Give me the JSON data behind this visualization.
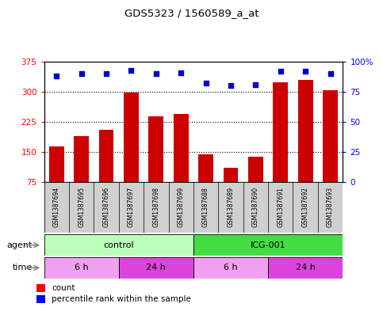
{
  "title": "GDS5323 / 1560589_a_at",
  "samples": [
    "GSM1387694",
    "GSM1387695",
    "GSM1387696",
    "GSM1387697",
    "GSM1387698",
    "GSM1387699",
    "GSM1387688",
    "GSM1387689",
    "GSM1387690",
    "GSM1387691",
    "GSM1387692",
    "GSM1387693"
  ],
  "bar_values": [
    163,
    190,
    205,
    298,
    238,
    244,
    143,
    110,
    138,
    323,
    330,
    305
  ],
  "dot_values": [
    88,
    90,
    90,
    93,
    90,
    91,
    82,
    80,
    81,
    92,
    92,
    90
  ],
  "ylim_left": [
    75,
    375
  ],
  "ylim_right": [
    0,
    100
  ],
  "yticks_left": [
    75,
    150,
    225,
    300,
    375
  ],
  "yticks_right": [
    0,
    25,
    50,
    75,
    100
  ],
  "bar_color": "#cc0000",
  "dot_color": "#0000cc",
  "legend_count": "count",
  "legend_percentile": "percentile rank within the sample",
  "agent_control_label": "control",
  "agent_icg_label": "ICG-001",
  "agent_control_color": "#bbffbb",
  "agent_icg_color": "#44dd44",
  "time_6h_label": "6 h",
  "time_24h_label": "24 h",
  "time_6h_color": "#f0a0f0",
  "time_24h_color": "#dd44dd",
  "agent_row_label": "agent",
  "time_row_label": "time",
  "grid_yticks": [
    150,
    225,
    300
  ],
  "sample_box_color": "#d0d0d0"
}
